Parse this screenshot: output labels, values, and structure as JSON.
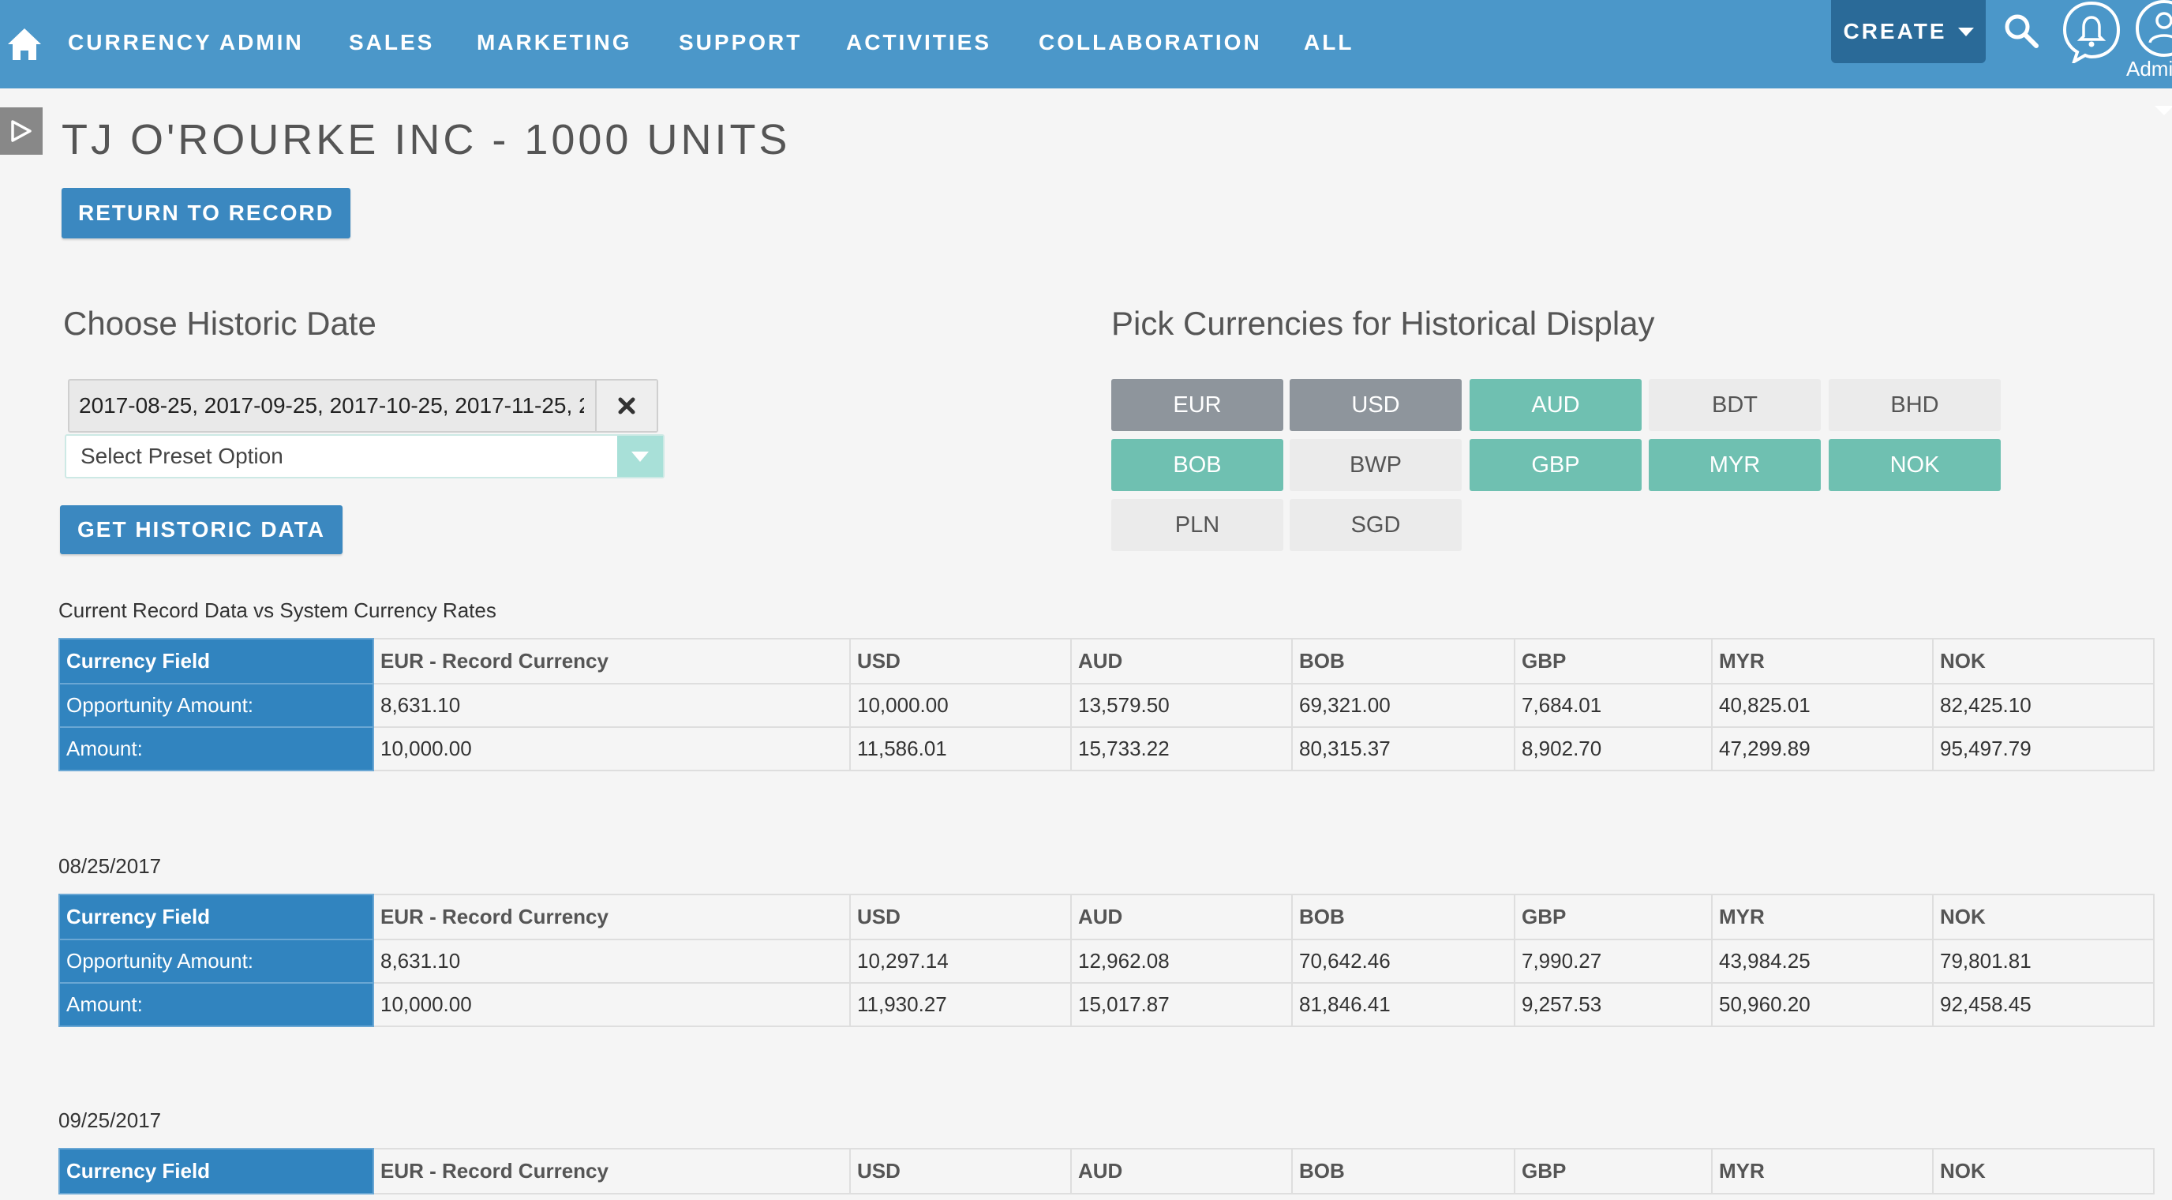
{
  "nav": {
    "items": [
      "CURRENCY ADMIN",
      "SALES",
      "MARKETING",
      "SUPPORT",
      "ACTIVITIES",
      "COLLABORATION",
      "ALL"
    ],
    "create_label": "CREATE",
    "user_label": "Admi"
  },
  "page": {
    "title": "TJ O'ROURKE INC - 1000 UNITS",
    "return_button": "RETURN TO RECORD"
  },
  "date_section": {
    "heading": "Choose Historic Date",
    "date_value": "2017-08-25, 2017-09-25, 2017-10-25, 2017-11-25, 2",
    "preset_placeholder": "Select Preset Option",
    "get_button": "GET HISTORIC DATA"
  },
  "currency_section": {
    "heading": "Pick Currencies for Historical Display",
    "buttons": [
      {
        "code": "EUR",
        "state": "grey"
      },
      {
        "code": "USD",
        "state": "grey"
      },
      {
        "code": "AUD",
        "state": "selected"
      },
      {
        "code": "BDT",
        "state": "off"
      },
      {
        "code": "BHD",
        "state": "off"
      },
      {
        "code": "BOB",
        "state": "selected"
      },
      {
        "code": "BWP",
        "state": "off"
      },
      {
        "code": "GBP",
        "state": "selected"
      },
      {
        "code": "MYR",
        "state": "selected"
      },
      {
        "code": "NOK",
        "state": "selected"
      },
      {
        "code": "PLN",
        "state": "off"
      },
      {
        "code": "SGD",
        "state": "off"
      }
    ]
  },
  "colors": {
    "nav_bg": "#4b97c9",
    "button_blue": "#3b88c0",
    "teal_selected": "#6fc0b1",
    "grey_base": "#8e959c",
    "label_cell": "#3184bf"
  },
  "tables": [
    {
      "caption": "Current Record Data vs System Currency Rates",
      "headers": [
        "Currency Field",
        "EUR - Record Currency",
        "USD",
        "AUD",
        "BOB",
        "GBP",
        "MYR",
        "NOK"
      ],
      "rows": [
        [
          "Opportunity Amount:",
          "8,631.10",
          "10,000.00",
          "13,579.50",
          "69,321.00",
          "7,684.01",
          "40,825.01",
          "82,425.10"
        ],
        [
          "Amount:",
          "10,000.00",
          "11,586.01",
          "15,733.22",
          "80,315.37",
          "8,902.70",
          "47,299.89",
          "95,497.79"
        ]
      ]
    },
    {
      "caption": "08/25/2017",
      "headers": [
        "Currency Field",
        "EUR - Record Currency",
        "USD",
        "AUD",
        "BOB",
        "GBP",
        "MYR",
        "NOK"
      ],
      "rows": [
        [
          "Opportunity Amount:",
          "8,631.10",
          "10,297.14",
          "12,962.08",
          "70,642.46",
          "7,990.27",
          "43,984.25",
          "79,801.81"
        ],
        [
          "Amount:",
          "10,000.00",
          "11,930.27",
          "15,017.87",
          "81,846.41",
          "9,257.53",
          "50,960.20",
          "92,458.45"
        ]
      ]
    },
    {
      "caption": "09/25/2017",
      "headers": [
        "Currency Field",
        "EUR - Record Currency",
        "USD",
        "AUD",
        "BOB",
        "GBP",
        "MYR",
        "NOK"
      ],
      "rows": []
    }
  ]
}
